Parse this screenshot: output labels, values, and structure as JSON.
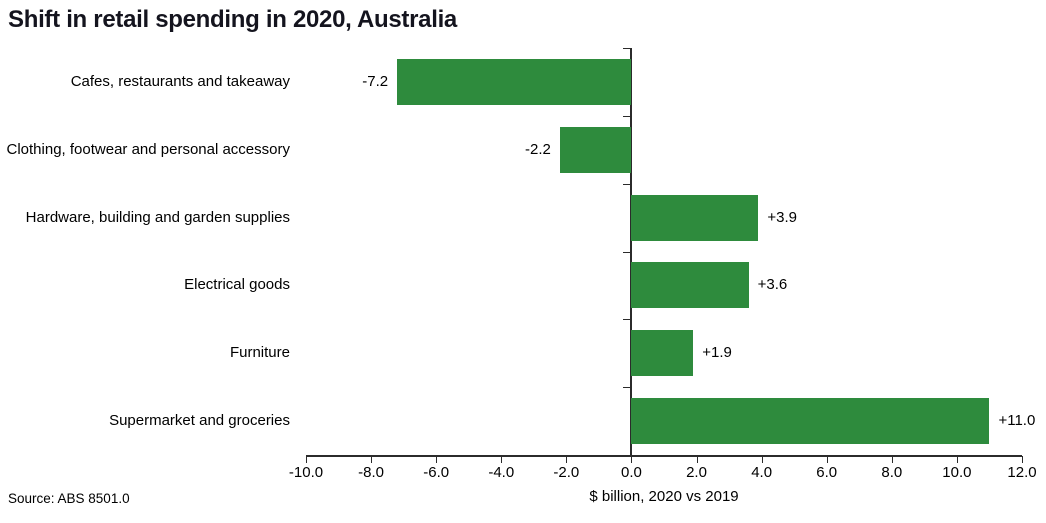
{
  "page": {
    "source": "Source: ABS 8501.0"
  },
  "chart_data": {
    "type": "bar",
    "orientation": "horizontal",
    "title": "Shift in retail spending in 2020, Australia",
    "categories": [
      "Cafes, restaurants and takeaway",
      "Clothing, footwear and personal accessory",
      "Hardware, building and garden supplies",
      "Electrical goods",
      "Furniture",
      "Supermarket and groceries"
    ],
    "values": [
      -7.2,
      -2.2,
      3.9,
      3.6,
      1.9,
      11.0
    ],
    "value_labels": [
      "-7.2",
      "-2.2",
      "+3.9",
      "+3.6",
      "+1.9",
      "+11.0"
    ],
    "xlabel": "$ billion, 2020 vs 2019",
    "xlim": [
      -10,
      12
    ],
    "xticks": [
      -10,
      -8,
      -6,
      -4,
      -2,
      0,
      2,
      4,
      6,
      8,
      10,
      12
    ],
    "xtick_labels": [
      "-10.0",
      "-8.0",
      "-6.0",
      "-4.0",
      "-2.0",
      "0.0",
      "2.0",
      "4.0",
      "6.0",
      "8.0",
      "10.0",
      "12.0"
    ],
    "bar_color": "#2e8b3d",
    "grid": false,
    "legend": null
  }
}
